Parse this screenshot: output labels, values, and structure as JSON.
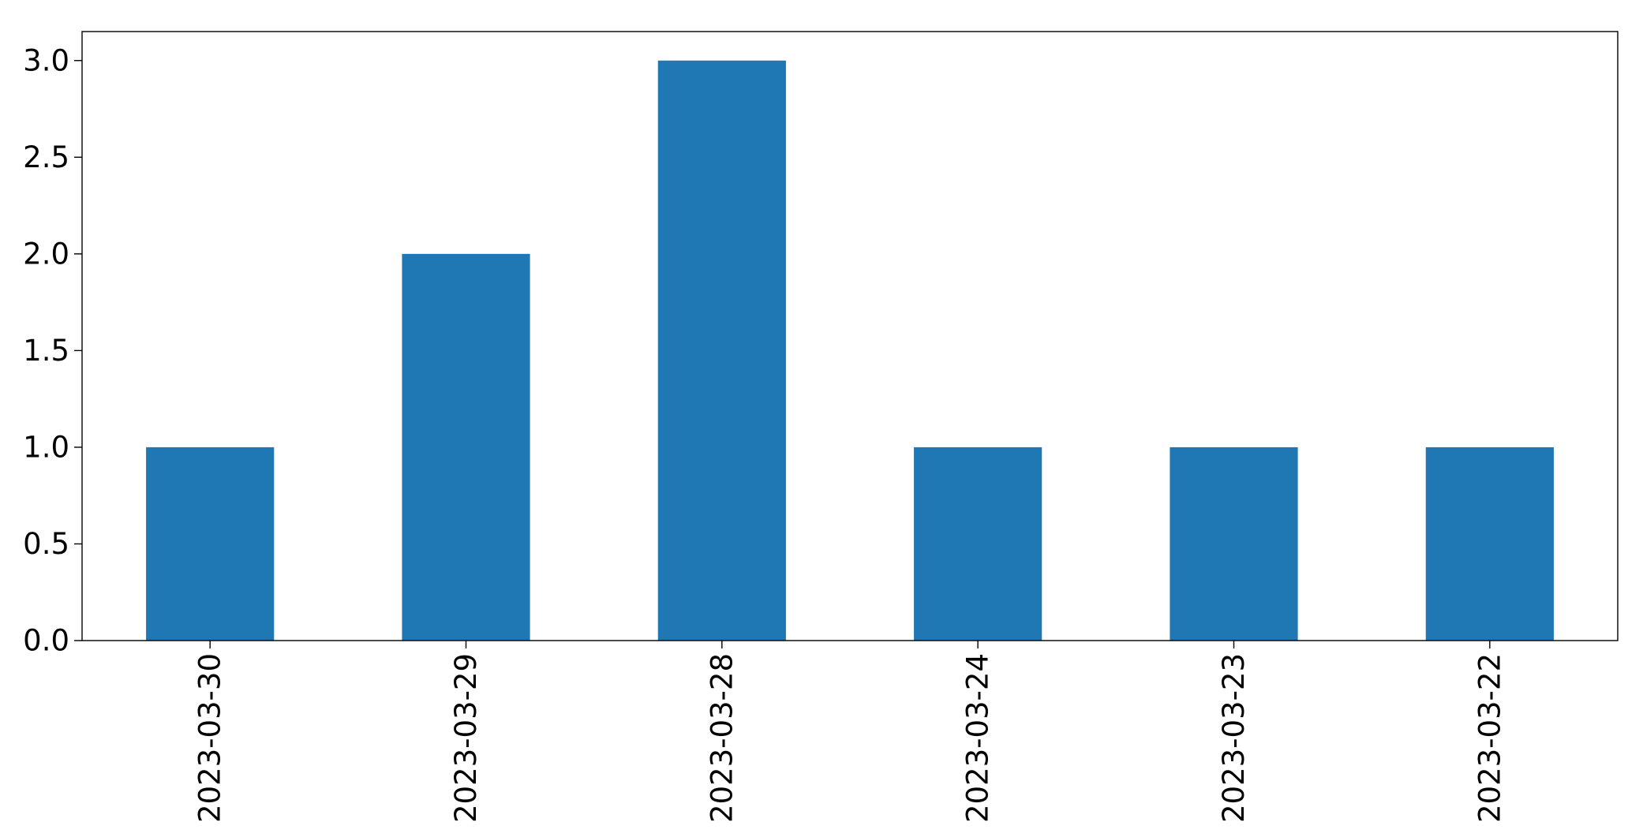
{
  "chart_data": {
    "type": "bar",
    "categories": [
      "2023-03-30",
      "2023-03-29",
      "2023-03-28",
      "2023-03-24",
      "2023-03-23",
      "2023-03-22"
    ],
    "values": [
      1,
      2,
      3,
      1,
      1,
      1
    ],
    "title": "",
    "xlabel": "",
    "ylabel": "",
    "ylim": [
      0,
      3.15
    ],
    "yticks": [
      0.0,
      0.5,
      1.0,
      1.5,
      2.0,
      2.5,
      3.0
    ],
    "ytick_labels": [
      "0.0",
      "0.5",
      "1.0",
      "1.5",
      "2.0",
      "2.5",
      "3.0"
    ],
    "grid": false,
    "legend": "none",
    "bar_color": "#1f77b4",
    "x_tick_rotation": "vertical"
  }
}
